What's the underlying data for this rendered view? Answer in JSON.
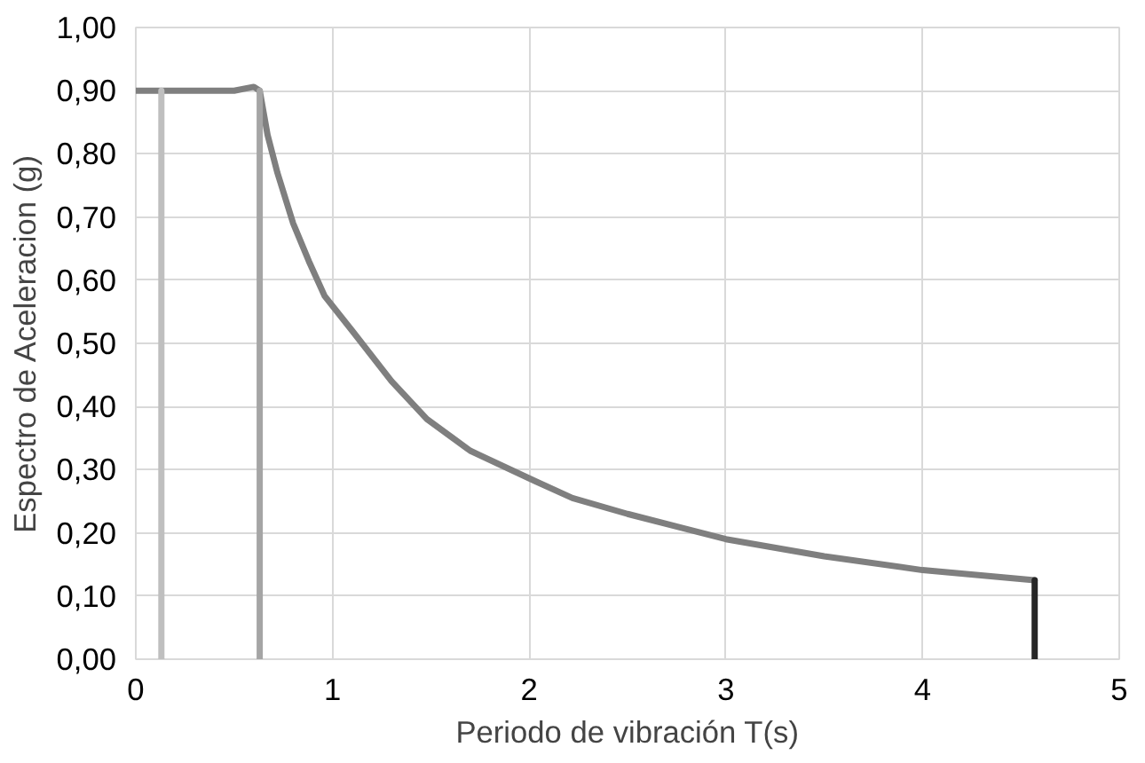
{
  "chart_data": {
    "type": "line",
    "xlabel": "Periodo de vibración T(s)",
    "ylabel": "Espectro de Aceleracion (g)",
    "xlim": [
      0,
      5
    ],
    "ylim": [
      0,
      1
    ],
    "xticks": [
      0,
      1,
      2,
      3,
      4,
      5
    ],
    "yticks": [
      {
        "value": 0,
        "label": "0,00"
      },
      {
        "value": 0.1,
        "label": "0,10"
      },
      {
        "value": 0.2,
        "label": "0,20"
      },
      {
        "value": 0.3,
        "label": "0,30"
      },
      {
        "value": 0.4,
        "label": "0,40"
      },
      {
        "value": 0.5,
        "label": "0,50"
      },
      {
        "value": 0.6,
        "label": "0,60"
      },
      {
        "value": 0.7,
        "label": "0,70"
      },
      {
        "value": 0.8,
        "label": "0,80"
      },
      {
        "value": 0.9,
        "label": "0,90"
      },
      {
        "value": 1,
        "label": "1,00"
      }
    ],
    "grid": true,
    "marker": "none",
    "line_style": "solid",
    "series": [
      {
        "color": "#7f7f7f",
        "x": [
          0,
          0.5,
          0.6,
          0.63,
          0.67,
          0.72,
          0.8,
          0.88,
          0.96,
          1.1,
          1.3,
          1.48,
          1.7,
          2.03,
          2.22,
          2.5,
          3,
          3.5,
          4,
          4.57
        ],
        "values": [
          0.9,
          0.9,
          0.906,
          0.9,
          0.83,
          0.77,
          0.69,
          0.63,
          0.575,
          0.52,
          0.44,
          0.38,
          0.33,
          0.282,
          0.255,
          0.23,
          0.19,
          0.163,
          0.141,
          0.125
        ]
      },
      {
        "color": "#bfbfbf",
        "x": [
          0.13,
          0.13
        ],
        "values": [
          0,
          0.9
        ]
      },
      {
        "color": "#a5a5a5",
        "x": [
          0.63,
          0.63
        ],
        "values": [
          0,
          0.9
        ]
      },
      {
        "color": "#262626",
        "x": [
          4.57,
          4.57
        ],
        "values": [
          0,
          0.125
        ]
      }
    ]
  }
}
